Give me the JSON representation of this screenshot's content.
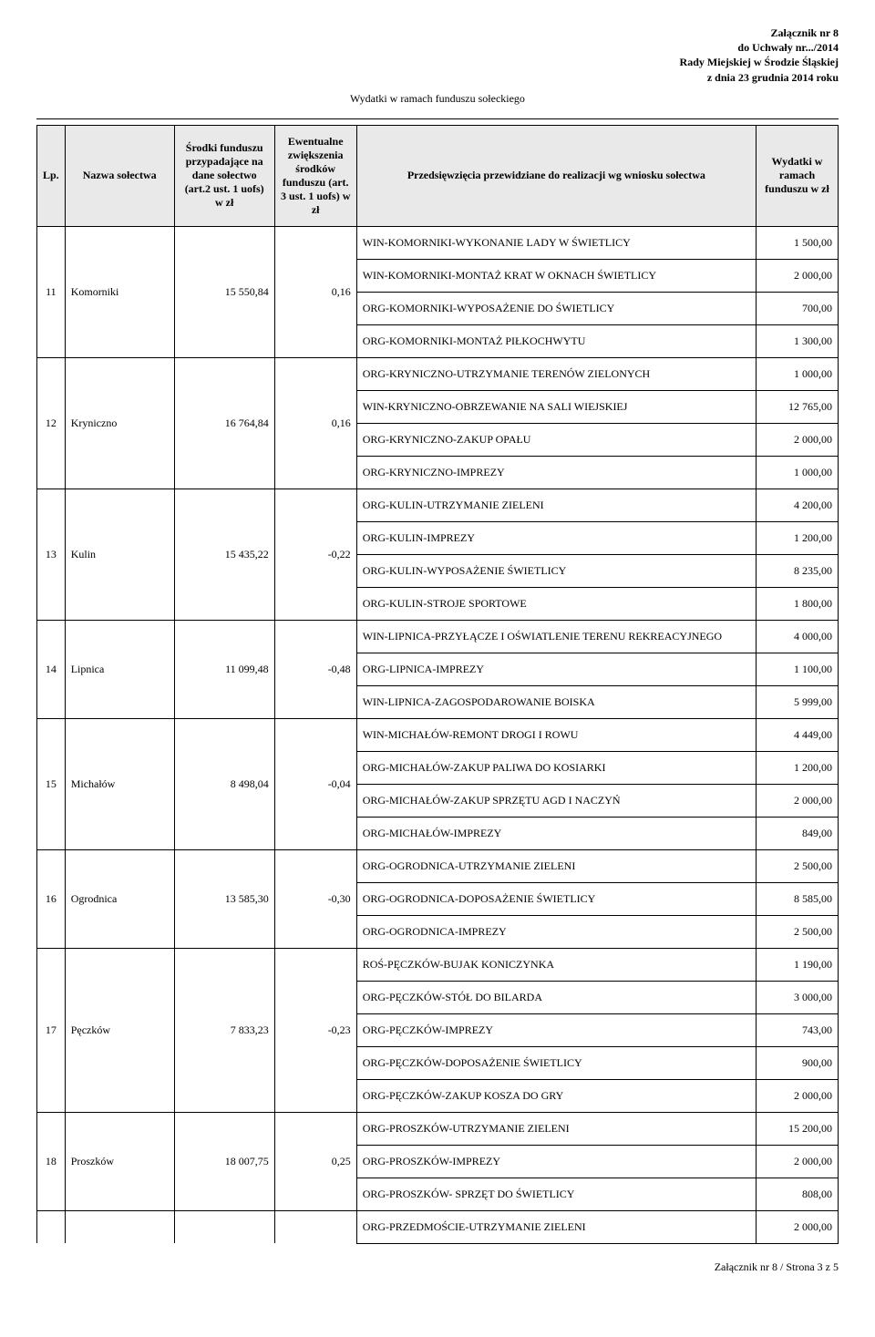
{
  "header": {
    "attachment": "Załącznik nr 8",
    "resolution": "do Uchwały nr.../2014",
    "council": "Rady Miejskiej w Środzie Śląskiej",
    "date": "z dnia 23 grudnia 2014 roku",
    "title": "Wydatki w ramach funduszu sołeckiego"
  },
  "columns": {
    "lp": "Lp.",
    "name": "Nazwa sołectwa",
    "amount": "Środki funduszu przypadające na dane sołectwo (art.2 ust. 1 uofs) w zł",
    "ratio": "Ewentualne zwiększenia środków funduszu (art. 3 ust. 1 uofs) w zł",
    "desc": "Przedsięwzięcia przewidziane do realizacji wg wniosku sołectwa",
    "value": "Wydatki w ramach funduszu w zł"
  },
  "rows": [
    {
      "lp": "11",
      "name": "Komorniki",
      "amount": "15 550,84",
      "ratio": "0,16",
      "items": [
        {
          "d": "WIN-KOMORNIKI-WYKONANIE LADY W ŚWIETLICY",
          "v": "1 500,00"
        },
        {
          "d": "WIN-KOMORNIKI-MONTAŻ KRAT W OKNACH ŚWIETLICY",
          "v": "2 000,00"
        },
        {
          "d": "ORG-KOMORNIKI-WYPOSAŻENIE DO ŚWIETLICY",
          "v": "700,00"
        },
        {
          "d": "ORG-KOMORNIKI-MONTAŻ PIŁKOCHWYTU",
          "v": "1 300,00"
        }
      ]
    },
    {
      "lp": "12",
      "name": "Kryniczno",
      "amount": "16 764,84",
      "ratio": "0,16",
      "items": [
        {
          "d": "ORG-KRYNICZNO-UTRZYMANIE TERENÓW ZIELONYCH",
          "v": "1 000,00"
        },
        {
          "d": "WIN-KRYNICZNO-OBRZEWANIE NA SALI WIEJSKIEJ",
          "v": "12 765,00"
        },
        {
          "d": "ORG-KRYNICZNO-ZAKUP OPAŁU",
          "v": "2 000,00"
        },
        {
          "d": "ORG-KRYNICZNO-IMPREZY",
          "v": "1 000,00"
        }
      ]
    },
    {
      "lp": "13",
      "name": "Kulin",
      "amount": "15 435,22",
      "ratio": "-0,22",
      "items": [
        {
          "d": "ORG-KULIN-UTRZYMANIE ZIELENI",
          "v": "4 200,00"
        },
        {
          "d": "ORG-KULIN-IMPREZY",
          "v": "1 200,00"
        },
        {
          "d": "ORG-KULIN-WYPOSAŻENIE ŚWIETLICY",
          "v": "8 235,00"
        },
        {
          "d": "ORG-KULIN-STROJE SPORTOWE",
          "v": "1 800,00"
        }
      ]
    },
    {
      "lp": "14",
      "name": "Lipnica",
      "amount": "11 099,48",
      "ratio": "-0,48",
      "items": [
        {
          "d": "WIN-LIPNICA-PRZYŁĄCZE I OŚWIATLENIE TERENU REKREACYJNEGO",
          "v": "4 000,00"
        },
        {
          "d": "ORG-LIPNICA-IMPREZY",
          "v": "1 100,00"
        },
        {
          "d": "WIN-LIPNICA-ZAGOSPODAROWANIE BOISKA",
          "v": "5 999,00"
        }
      ]
    },
    {
      "lp": "15",
      "name": "Michałów",
      "amount": "8 498,04",
      "ratio": "-0,04",
      "items": [
        {
          "d": "WIN-MICHAŁÓW-REMONT DROGI I ROWU",
          "v": "4 449,00"
        },
        {
          "d": "ORG-MICHAŁÓW-ZAKUP PALIWA DO KOSIARKI",
          "v": "1 200,00"
        },
        {
          "d": "ORG-MICHAŁÓW-ZAKUP SPRZĘTU AGD I NACZYŃ",
          "v": "2 000,00"
        },
        {
          "d": "ORG-MICHAŁÓW-IMPREZY",
          "v": "849,00"
        }
      ]
    },
    {
      "lp": "16",
      "name": "Ogrodnica",
      "amount": "13 585,30",
      "ratio": "-0,30",
      "items": [
        {
          "d": "ORG-OGRODNICA-UTRZYMANIE ZIELENI",
          "v": "2 500,00"
        },
        {
          "d": "ORG-OGRODNICA-DOPOSAŻENIE ŚWIETLICY",
          "v": "8 585,00"
        },
        {
          "d": "ORG-OGRODNICA-IMPREZY",
          "v": "2 500,00"
        }
      ]
    },
    {
      "lp": "17",
      "name": "Pęczków",
      "amount": "7 833,23",
      "ratio": "-0,23",
      "items": [
        {
          "d": "ROŚ-PĘCZKÓW-BUJAK KONICZYNKA",
          "v": "1 190,00"
        },
        {
          "d": "ORG-PĘCZKÓW-STÓŁ DO BILARDA",
          "v": "3 000,00"
        },
        {
          "d": "ORG-PĘCZKÓW-IMPREZY",
          "v": "743,00"
        },
        {
          "d": "ORG-PĘCZKÓW-DOPOSAŻENIE ŚWIETLICY",
          "v": "900,00"
        },
        {
          "d": "ORG-PĘCZKÓW-ZAKUP KOSZA DO GRY",
          "v": "2 000,00"
        }
      ]
    },
    {
      "lp": "18",
      "name": "Proszków",
      "amount": "18 007,75",
      "ratio": "0,25",
      "items": [
        {
          "d": "ORG-PROSZKÓW-UTRZYMANIE ZIELENI",
          "v": "15 200,00"
        },
        {
          "d": "ORG-PROSZKÓW-IMPREZY",
          "v": "2 000,00"
        },
        {
          "d": "ORG-PROSZKÓW- SPRZĘT DO ŚWIETLICY",
          "v": "808,00"
        }
      ]
    }
  ],
  "trailing": [
    {
      "d": "ORG-PRZEDMOŚCIE-UTRZYMANIE ZIELENI",
      "v": "2 000,00"
    }
  ],
  "footer": "Załącznik nr 8 / Strona 3 z 5"
}
